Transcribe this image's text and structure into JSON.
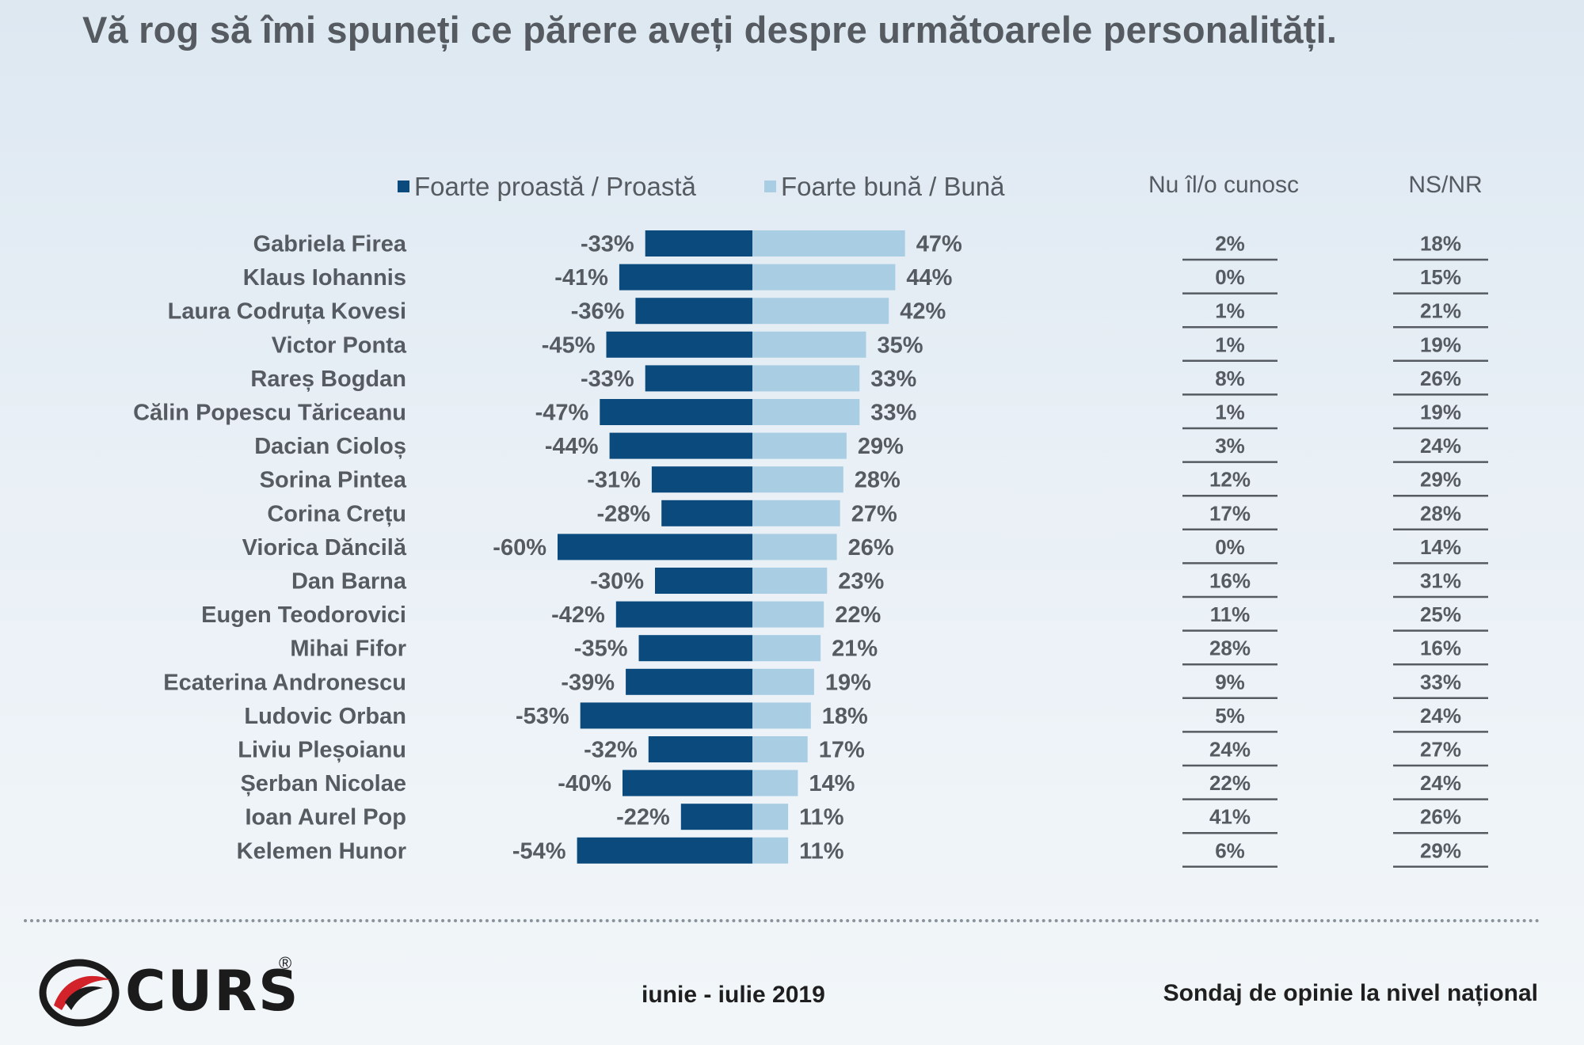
{
  "title": "Vă rog să îmi spuneți ce părere aveți despre următoarele personalități.",
  "legend": {
    "negative": "Foarte proastă / Proastă",
    "positive": "Foarte bună / Bună"
  },
  "columns": {
    "unknown": "Nu îl/o cunosc",
    "nsnr": "NS/NR"
  },
  "colors": {
    "negative": "#0b4a7d",
    "positive": "#a9cde3",
    "text": "#555b61"
  },
  "chart_data": {
    "type": "bar",
    "orientation": "horizontal-diverging",
    "title": "Vă rog să îmi spuneți ce părere aveți despre următoarele personalități.",
    "categories": [
      "Gabriela Firea",
      "Klaus Iohannis",
      "Laura Codruța Kovesi",
      "Victor Ponta",
      "Rareș Bogdan",
      "Călin Popescu Tăriceanu",
      "Dacian Cioloș",
      "Sorina Pintea",
      "Corina Crețu",
      "Viorica Dăncilă",
      "Dan Barna",
      "Eugen Teodorovici",
      "Mihai Fifor",
      "Ecaterina Andronescu",
      "Ludovic Orban",
      "Liviu Pleșoianu",
      "Șerban Nicolae",
      "Ioan Aurel Pop",
      "Kelemen Hunor"
    ],
    "series": [
      {
        "name": "Foarte proastă / Proastă",
        "values": [
          -33,
          -41,
          -36,
          -45,
          -33,
          -47,
          -44,
          -31,
          -28,
          -60,
          -30,
          -42,
          -35,
          -39,
          -53,
          -32,
          -40,
          -22,
          -54
        ],
        "labels": [
          "-33%",
          "-41%",
          "-36%",
          "-45%",
          "-33%",
          "-47%",
          "-44%",
          "-31%",
          "-28%",
          "-60%",
          "-30%",
          "-42%",
          "-35%",
          "-39%",
          "-53%",
          "-32%",
          "-40%",
          "-22%",
          "-54%"
        ]
      },
      {
        "name": "Foarte bună / Bună",
        "values": [
          47,
          44,
          42,
          35,
          33,
          33,
          29,
          28,
          27,
          26,
          23,
          22,
          21,
          19,
          18,
          17,
          14,
          11,
          11
        ],
        "labels": [
          "47%",
          "44%",
          "42%",
          "35%",
          "33%",
          "33%",
          "29%",
          "28%",
          "27%",
          "26%",
          "23%",
          "22%",
          "21%",
          "19%",
          "18%",
          "17%",
          "14%",
          "11%",
          "11%"
        ]
      }
    ],
    "unknown": [
      "2%",
      "0%",
      "1%",
      "1%",
      "8%",
      "1%",
      "3%",
      "12%",
      "17%",
      "0%",
      "16%",
      "11%",
      "28%",
      "9%",
      "5%",
      "24%",
      "22%",
      "41%",
      "6%"
    ],
    "nsnr": [
      "18%",
      "15%",
      "21%",
      "19%",
      "26%",
      "19%",
      "24%",
      "29%",
      "28%",
      "14%",
      "31%",
      "25%",
      "16%",
      "33%",
      "24%",
      "27%",
      "24%",
      "26%",
      "29%"
    ],
    "xlim": [
      -60,
      47
    ],
    "legend": "top"
  },
  "footer": {
    "logo_text": "CURS",
    "logo_mark": "®",
    "date": "iunie - iulie  2019",
    "source": "Sondaj de opinie la nivel național"
  }
}
